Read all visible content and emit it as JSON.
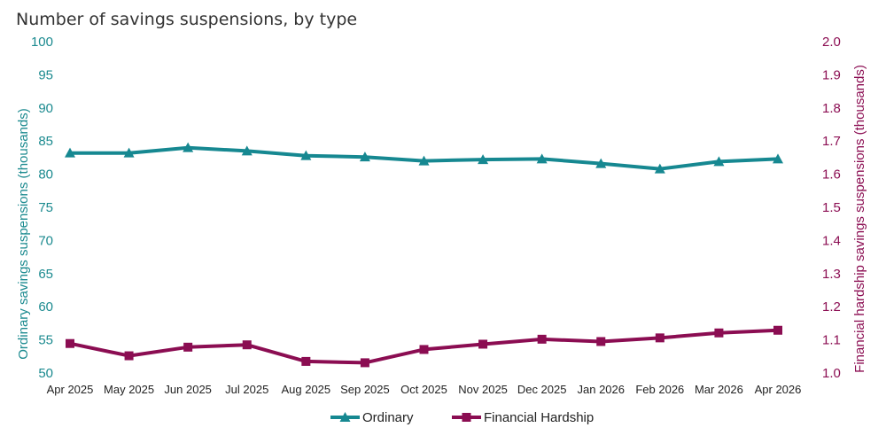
{
  "chart_data": {
    "type": "line",
    "title": "Number of savings suspensions, by type",
    "categories": [
      "Apr 2025",
      "May 2025",
      "Jun 2025",
      "Jul 2025",
      "Aug 2025",
      "Sep 2025",
      "Oct 2025",
      "Nov 2025",
      "Dec 2025",
      "Jan 2026",
      "Feb 2026",
      "Mar 2026",
      "Apr 2026"
    ],
    "ylabel_left": "Ordinary savings suspensions (thousands)",
    "ylabel_right": "Financial hardship savings suspensions (thousands)",
    "ylim_left": [
      50,
      100
    ],
    "ylim_right": [
      1.0,
      2.0
    ],
    "yticks_left": [
      "50",
      "55",
      "60",
      "65",
      "70",
      "75",
      "80",
      "85",
      "90",
      "95",
      "100"
    ],
    "yticks_right": [
      "1.0",
      "1.1",
      "1.2",
      "1.3",
      "1.4",
      "1.5",
      "1.6",
      "1.7",
      "1.8",
      "1.9",
      "2.0"
    ],
    "grid": false,
    "legend_position": "bottom",
    "series": [
      {
        "name": "Ordinary",
        "axis": "left",
        "marker": "triangle",
        "color": "#168891",
        "values": [
          83.2,
          83.2,
          84.0,
          83.5,
          82.8,
          82.6,
          82.0,
          82.2,
          82.3,
          81.6,
          80.8,
          81.9,
          82.3
        ]
      },
      {
        "name": "Financial Hardship",
        "axis": "right",
        "marker": "square",
        "color": "#8b0d52",
        "values": [
          1.089,
          1.052,
          1.078,
          1.085,
          1.035,
          1.031,
          1.071,
          1.087,
          1.102,
          1.095,
          1.106,
          1.121,
          1.129
        ]
      }
    ]
  }
}
